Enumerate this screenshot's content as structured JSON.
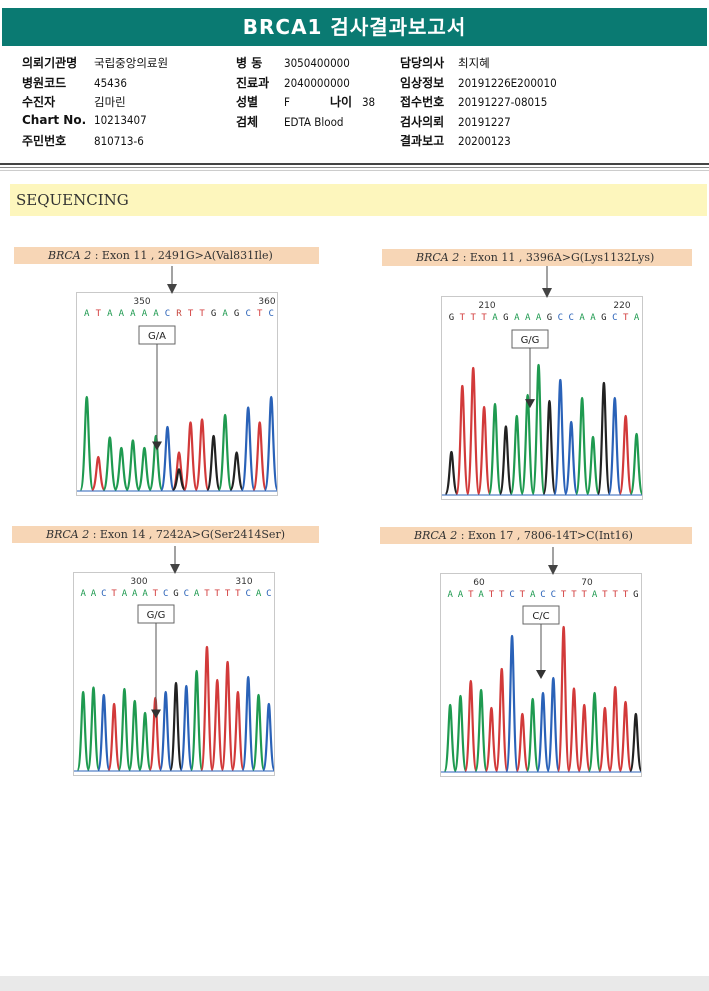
{
  "report": {
    "title": "BRCA1 검사결과보고서"
  },
  "patient_info": {
    "col1": [
      {
        "label": "의뢰기관명",
        "value": "국립중앙의료원"
      },
      {
        "label": "병원코드",
        "value": "45436"
      },
      {
        "label": "수진자",
        "value": "김마린"
      },
      {
        "label": "Chart No.",
        "value": "10213407"
      },
      {
        "label": "주민번호",
        "value": "810713-6"
      }
    ],
    "col2": [
      {
        "label": "병 동",
        "value": "3050400000"
      },
      {
        "label": "진료과",
        "value": "2040000000"
      },
      {
        "label": "성별",
        "value": "F"
      },
      {
        "label": "검체",
        "value": "EDTA Blood"
      }
    ],
    "age": {
      "label": "나이",
      "value": "38"
    },
    "col3": [
      {
        "label": "담당의사",
        "value": "최지혜"
      },
      {
        "label": "임상정보",
        "value": "20191226E200010"
      },
      {
        "label": "접수번호",
        "value": "20191227-08015"
      },
      {
        "label": "검사의뢰",
        "value": "20191227"
      },
      {
        "label": "결과보고",
        "value": "20200123"
      }
    ]
  },
  "section": {
    "title": "SEQUENCING"
  },
  "panels": [
    {
      "gene": "BRCA 2",
      "variant": ": Exon 11 , 2491G>A(Val831Ile)",
      "pos_left": "350",
      "pos_right": "360",
      "sequence": "ATAAAAACRTTGAGCTC",
      "genotype": "G/A"
    },
    {
      "gene": "BRCA 2",
      "variant": ": Exon 11 , 3396A>G(Lys1132Lys)",
      "pos_left": "210",
      "pos_right": "220",
      "sequence": "GTTTAGAAAGCCAAGCTA",
      "genotype": "G/G"
    },
    {
      "gene": "BRCA 2",
      "variant": ": Exon 14 , 7242A>G(Ser2414Ser)",
      "pos_left": "300",
      "pos_right": "310",
      "sequence": "AACTAAATCGCATTTTCAC",
      "genotype": "G/G"
    },
    {
      "gene": "BRCA 2",
      "variant": ": Exon 17 , 7806-14T>C(Int16)",
      "pos_left": "60",
      "pos_right": "70",
      "sequence": "AATATTCTACCTTTATTTG",
      "genotype": "C/C"
    }
  ],
  "colors": {
    "title_bar": "#0a7a72",
    "section_bg": "#fdf6bd",
    "label_bg": "#f7d6b6",
    "base_A": "#1f9a50",
    "base_C": "#2a62b8",
    "base_G": "#222222",
    "base_T": "#d23a3a",
    "base_R": "#c5443c"
  }
}
